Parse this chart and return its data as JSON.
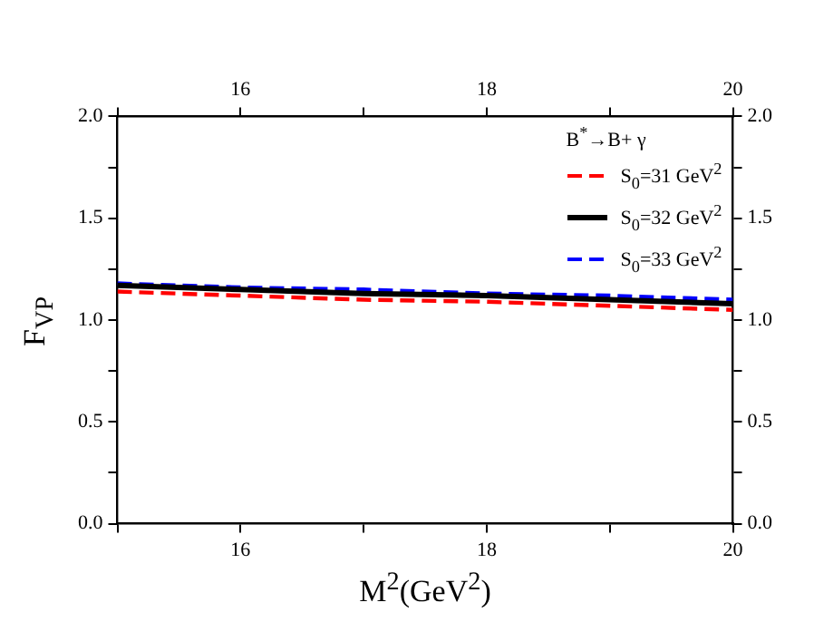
{
  "chart_data": {
    "type": "line",
    "xlabel": "M$^{2}$(GeV$^{2}$)",
    "ylabel": "F$_{VP}$",
    "legend_title": "B$^{*}$→B+ γ",
    "legend": "top right",
    "grid": false,
    "marker": "none",
    "x": [
      15,
      16,
      17,
      18,
      19,
      20
    ],
    "xlim": [
      15,
      20
    ],
    "xticks": [
      {
        "value": 15,
        "label": null
      },
      16,
      {
        "value": 17,
        "label": null
      },
      18,
      {
        "value": 19,
        "label": null
      },
      20
    ],
    "x2lim": [
      15,
      20
    ],
    "x2ticks": [
      {
        "value": 15,
        "label": null
      },
      16,
      {
        "value": 17,
        "label": null
      },
      18,
      {
        "value": 19,
        "label": null
      },
      20
    ],
    "ylim": [
      0,
      2
    ],
    "yticks": [
      {
        "value": 0,
        "label": "0.0"
      },
      {
        "value": 0.25,
        "label": null
      },
      {
        "value": 0.5,
        "label": "0.5"
      },
      {
        "value": 0.75,
        "label": null
      },
      {
        "value": 1,
        "label": "1.0"
      },
      {
        "value": 1.25,
        "label": null
      },
      {
        "value": 1.5,
        "label": "1.5"
      },
      {
        "value": 1.75,
        "label": null
      },
      {
        "value": 2,
        "label": "2.0"
      }
    ],
    "y2lim": [
      0,
      2
    ],
    "y2ticks": [
      {
        "value": 0,
        "label": "0.0"
      },
      {
        "value": 0.25,
        "label": null
      },
      {
        "value": 0.5,
        "label": "0.5"
      },
      {
        "value": 0.75,
        "label": null
      },
      {
        "value": 1,
        "label": "1.0"
      },
      {
        "value": 1.25,
        "label": null
      },
      {
        "value": 1.5,
        "label": "1.5"
      },
      {
        "value": 1.75,
        "label": null
      },
      {
        "value": 2,
        "label": "2.0"
      }
    ],
    "series": [
      {
        "name": "S$_{0}$=31 GeV$^{2}$",
        "color": "#ff0000",
        "line_style": "dashed",
        "values": [
          1.14,
          1.12,
          1.1,
          1.09,
          1.07,
          1.05
        ]
      },
      {
        "name": "S$_{0}$=32 GeV$^{2}$",
        "color": "#000000",
        "line_style": "solid",
        "values": [
          1.17,
          1.15,
          1.13,
          1.12,
          1.1,
          1.08
        ]
      },
      {
        "name": "S$_{0}$=33 GeV$^{2}$",
        "color": "#0000ff",
        "line_style": "dashed",
        "values": [
          1.18,
          1.16,
          1.15,
          1.13,
          1.12,
          1.1
        ]
      }
    ]
  }
}
